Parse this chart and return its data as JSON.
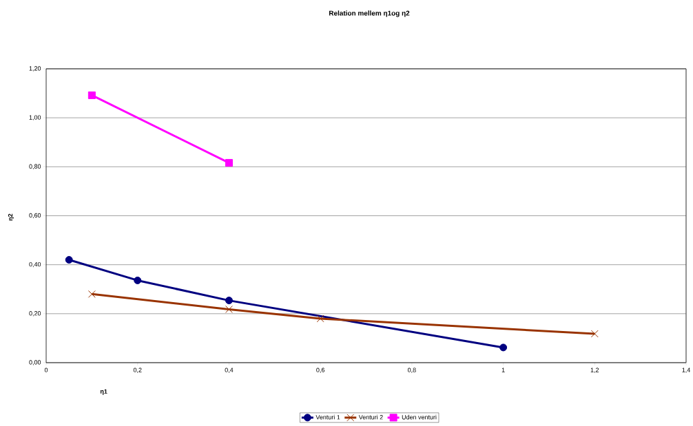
{
  "chart_data": {
    "type": "line",
    "title": "Relation mellem η1og η2",
    "xlabel": "η1",
    "ylabel": "η2",
    "xlim": [
      0,
      1.4
    ],
    "xticks": [
      0,
      {
        "value": 0.2,
        "label": "0,2"
      },
      {
        "value": 0.4,
        "label": "0,4"
      },
      {
        "value": 0.6,
        "label": "0,6"
      },
      {
        "value": 0.8,
        "label": "0,8"
      },
      1,
      {
        "value": 1.2,
        "label": "1,2"
      },
      {
        "value": 1.4,
        "label": "1,4"
      }
    ],
    "ylim": [
      0,
      1.2
    ],
    "yticks": [
      {
        "value": 0,
        "label": "0,00"
      },
      {
        "value": 0.2,
        "label": "0,20"
      },
      {
        "value": 0.4,
        "label": "0,40"
      },
      {
        "value": 0.6,
        "label": "0,60"
      },
      {
        "value": 0.8,
        "label": "0,80"
      },
      {
        "value": 1.0,
        "label": "1,00"
      },
      {
        "value": 1.2,
        "label": "1,20"
      }
    ],
    "grid": "y",
    "legend": "bottom",
    "series": [
      {
        "name": "Venturi 1",
        "color": "#000080",
        "marker": "circle",
        "x": [
          0.05,
          0.2,
          0.4,
          1.0
        ],
        "values": [
          0.42,
          0.336,
          0.254,
          0.062
        ]
      },
      {
        "name": "Venturi 2",
        "color": "#993300",
        "marker": "cross",
        "x": [
          0.1,
          0.4,
          0.6,
          1.2
        ],
        "values": [
          0.28,
          0.218,
          0.18,
          0.118
        ]
      },
      {
        "name": "Uden venturi",
        "color": "#ff00ff",
        "marker": "square",
        "x": [
          0.1,
          0.4
        ],
        "values": [
          1.092,
          0.816
        ]
      }
    ]
  }
}
